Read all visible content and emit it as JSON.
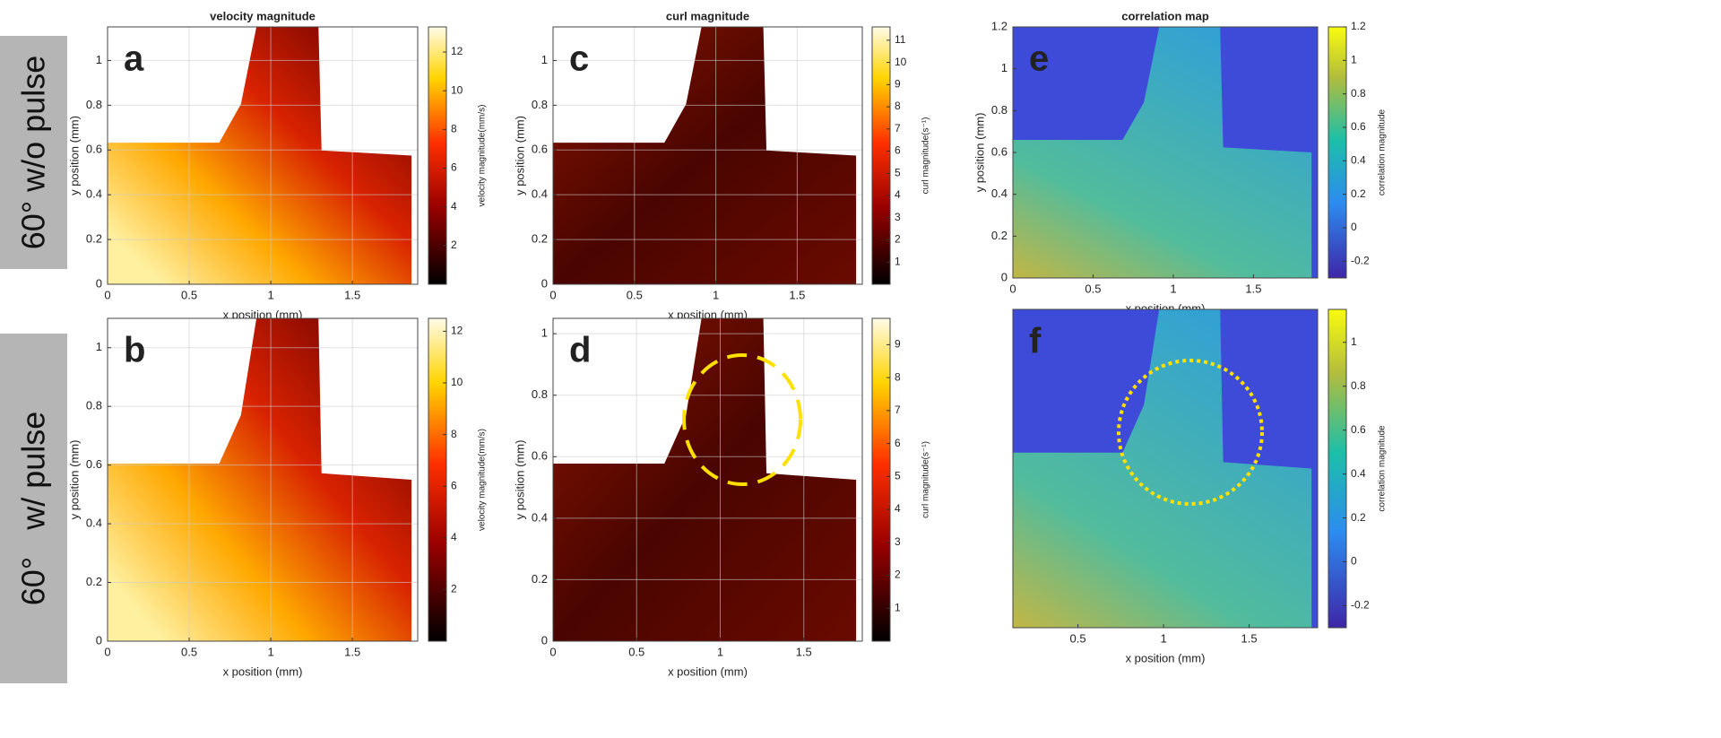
{
  "row_labels": [
    "60° w/o pulse",
    "60°   w/ pulse"
  ],
  "chart_data": [
    {
      "type": "heatmap",
      "panel_label": "a",
      "title": "velocity magnitude",
      "xlabel": "x position (mm)",
      "ylabel": "y position (mm)",
      "xlim": [
        0,
        1.9
      ],
      "ylim": [
        0,
        1.15
      ],
      "xticks": [
        0,
        0.5,
        1,
        1.5
      ],
      "yticks": [
        0,
        0.2,
        0.4,
        0.6,
        0.8,
        1
      ],
      "grid": true,
      "colormap": "hot",
      "colorbar": {
        "label": "velocity magnitude(mm/s)",
        "lim": [
          0,
          13.3
        ],
        "ticks": [
          2,
          4,
          6,
          8,
          10,
          12
        ]
      }
    },
    {
      "type": "heatmap",
      "panel_label": "c",
      "title": "curl magnitude",
      "xlabel": "x position (mm)",
      "ylabel": "y position (mm)",
      "xlim": [
        0,
        1.9
      ],
      "ylim": [
        0,
        1.15
      ],
      "xticks": [
        0,
        0.5,
        1,
        1.5
      ],
      "yticks": [
        0,
        0.2,
        0.4,
        0.6,
        0.8,
        1
      ],
      "grid": true,
      "colormap": "curl",
      "colorbar": {
        "label": "curl magnitude(s⁻¹)",
        "lim": [
          0,
          11.6
        ],
        "ticks": [
          1,
          2,
          3,
          4,
          5,
          6,
          7,
          8,
          9,
          10,
          11
        ]
      }
    },
    {
      "type": "heatmap",
      "panel_label": "e",
      "title": "correlation map",
      "xlabel": "x position (mm)",
      "ylabel": "y position (mm)",
      "xlim": [
        0,
        1.9
      ],
      "ylim": [
        0,
        1.2
      ],
      "xticks": [
        0,
        0.5,
        1,
        1.5
      ],
      "yticks": [
        0,
        0.2,
        0.4,
        0.6,
        0.8,
        1,
        1.2
      ],
      "grid": false,
      "colormap": "parula",
      "colorbar": {
        "label": "correlation magnitude",
        "lim": [
          -0.3,
          1.2
        ],
        "ticks": [
          -0.2,
          0,
          0.2,
          0.4,
          0.6,
          0.8,
          1,
          1.2
        ]
      }
    },
    {
      "type": "heatmap",
      "panel_label": "b",
      "xlabel": "x position (mm)",
      "ylabel": "y position (mm)",
      "xlim": [
        0,
        1.9
      ],
      "ylim": [
        0,
        1.1
      ],
      "xticks": [
        0,
        0.5,
        1,
        1.5
      ],
      "yticks": [
        0,
        0.2,
        0.4,
        0.6,
        0.8,
        1
      ],
      "grid": true,
      "colormap": "hot",
      "colorbar": {
        "label": "velocity magnitude(mm/s)",
        "lim": [
          0,
          12.5
        ],
        "ticks": [
          2,
          4,
          6,
          8,
          10,
          12
        ]
      }
    },
    {
      "type": "heatmap",
      "panel_label": "d",
      "xlabel": "x position (mm)",
      "ylabel": "y position (mm)",
      "xlim": [
        0,
        1.85
      ],
      "ylim": [
        0,
        1.05
      ],
      "xticks": [
        0,
        0.5,
        1,
        1.5
      ],
      "yticks": [
        0,
        0.2,
        0.4,
        0.6,
        0.8,
        1
      ],
      "grid": true,
      "colormap": "curl",
      "colorbar": {
        "label": "curl magnitude(s⁻¹)",
        "lim": [
          0,
          9.8
        ],
        "ticks": [
          1,
          2,
          3,
          4,
          5,
          6,
          7,
          8,
          9
        ]
      }
    },
    {
      "type": "heatmap",
      "panel_label": "f",
      "xlabel": "x position (mm)",
      "xlim": [
        0.12,
        1.9
      ],
      "ylim": [
        0,
        1.1
      ],
      "xticks": [
        0.5,
        1,
        1.5
      ],
      "grid": false,
      "colormap": "parula",
      "colorbar": {
        "label": "correlation magnitude",
        "lim": [
          -0.3,
          1.15
        ],
        "ticks": [
          -0.2,
          0,
          0.2,
          0.4,
          0.6,
          0.8,
          1
        ]
      }
    }
  ]
}
